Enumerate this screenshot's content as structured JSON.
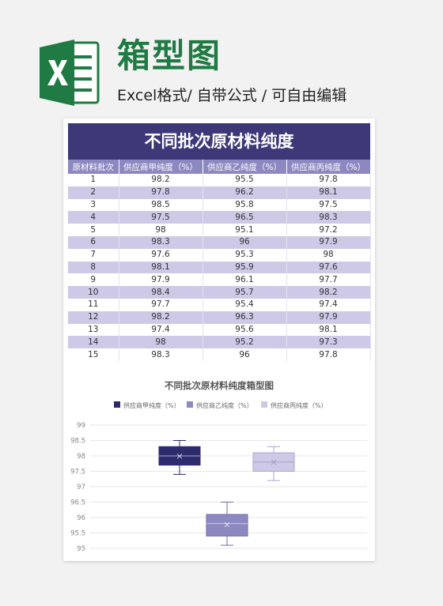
{
  "header": {
    "title": "箱型图",
    "subtitle": "Excel格式/ 自带公式 / 可自由编辑"
  },
  "colors": {
    "brand_green": "#1f7a43",
    "header_bar": "#3d3878",
    "column_header": "#8b89c0",
    "row_alt": "#cdc9e7"
  },
  "table": {
    "title": "不同批次原材料纯度",
    "columns": [
      "原材料批次",
      "供应商甲纯度（%）",
      "供应商乙纯度（%）",
      "供应商丙纯度（%）"
    ],
    "rows": [
      [
        "1",
        "98.2",
        "95.5",
        "97.8"
      ],
      [
        "2",
        "97.8",
        "96.2",
        "98.1"
      ],
      [
        "3",
        "98.5",
        "95.8",
        "97.5"
      ],
      [
        "4",
        "97.5",
        "96.5",
        "98.3"
      ],
      [
        "5",
        "98",
        "95.1",
        "97.2"
      ],
      [
        "6",
        "98.3",
        "96",
        "97.9"
      ],
      [
        "7",
        "97.6",
        "95.3",
        "98"
      ],
      [
        "8",
        "98.1",
        "95.9",
        "97.6"
      ],
      [
        "9",
        "97.9",
        "96.1",
        "97.7"
      ],
      [
        "10",
        "98.4",
        "95.7",
        "98.2"
      ],
      [
        "11",
        "97.7",
        "95.4",
        "97.4"
      ],
      [
        "12",
        "98.2",
        "96.3",
        "97.9"
      ],
      [
        "13",
        "97.4",
        "95.6",
        "98.1"
      ],
      [
        "14",
        "98",
        "95.2",
        "97.3"
      ],
      [
        "15",
        "98.3",
        "96",
        "97.8"
      ]
    ]
  },
  "chart_data": {
    "type": "box",
    "title": "不同批次原材料纯度箱型图",
    "legend_position": "top",
    "grid": true,
    "ylim": [
      95,
      99
    ],
    "yticks": [
      "95",
      "95.5",
      "96",
      "96.5",
      "97",
      "97.5",
      "98",
      "98.5",
      "99"
    ],
    "series": [
      {
        "name": "供应商甲纯度（%）",
        "color": "#2e2a6e",
        "min": 97.4,
        "q1": 97.7,
        "median": 98.0,
        "q3": 98.3,
        "max": 98.5,
        "mean": 97.99
      },
      {
        "name": "供应商乙纯度（%）",
        "color": "#8b89c0",
        "min": 95.1,
        "q1": 95.4,
        "median": 95.8,
        "q3": 96.1,
        "max": 96.5,
        "mean": 95.77
      },
      {
        "name": "供应商丙纯度（%）",
        "color": "#cdc9e7",
        "min": 97.2,
        "q1": 97.5,
        "median": 97.8,
        "q3": 98.1,
        "max": 98.3,
        "mean": 97.79
      }
    ]
  }
}
